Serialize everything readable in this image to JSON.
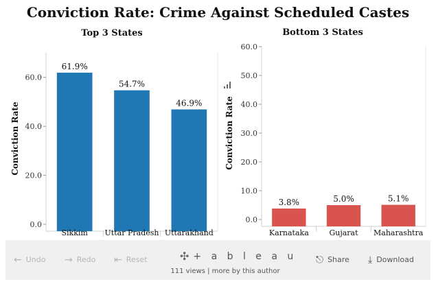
{
  "page": {
    "title": "Conviction Rate: Crime Against Scheduled Castes"
  },
  "chart_data": [
    {
      "type": "bar",
      "title": "Top 3 States",
      "ylabel": "Conviction Rate",
      "xlabel": "",
      "categories": [
        "Sikkim",
        "Uttar Pradesh",
        "Uttarakhand"
      ],
      "values": [
        61.9,
        54.7,
        46.9
      ],
      "value_labels": [
        "61.9%",
        "54.7%",
        "46.9%"
      ],
      "ylim": [
        0,
        70
      ],
      "yticks": [
        0,
        20,
        40,
        60
      ],
      "ytick_labels": [
        "0.0",
        "20.0",
        "40.0",
        "60.0"
      ],
      "color": "#1f77b4",
      "grid": false
    },
    {
      "type": "bar",
      "title": "Bottom 3 States",
      "ylabel": "Conviction Rate",
      "xlabel": "",
      "categories": [
        "Karnataka",
        "Gujarat",
        "Maharashtra"
      ],
      "values": [
        3.8,
        5.0,
        5.1
      ],
      "value_labels": [
        "3.8%",
        "5.0%",
        "5.1%"
      ],
      "ylim": [
        0,
        60
      ],
      "yticks": [
        0,
        10,
        20,
        30,
        40,
        50,
        60
      ],
      "ytick_labels": [
        "0.0",
        "10.0",
        "20.0",
        "30.0",
        "40.0",
        "50.0",
        "60.0"
      ],
      "color": "#d9534f",
      "grid": false
    }
  ],
  "toolbar": {
    "undo": "Undo",
    "redo": "Redo",
    "reset": "Reset",
    "brand": "+ a b l e a u",
    "views": "111 views",
    "separator": "|",
    "more": "more by this author",
    "share": "Share",
    "download": "Download",
    "icons": [
      "undo-icon",
      "redo-icon",
      "reset-icon",
      "tableau-logo-icon",
      "share-icon",
      "download-icon"
    ]
  }
}
